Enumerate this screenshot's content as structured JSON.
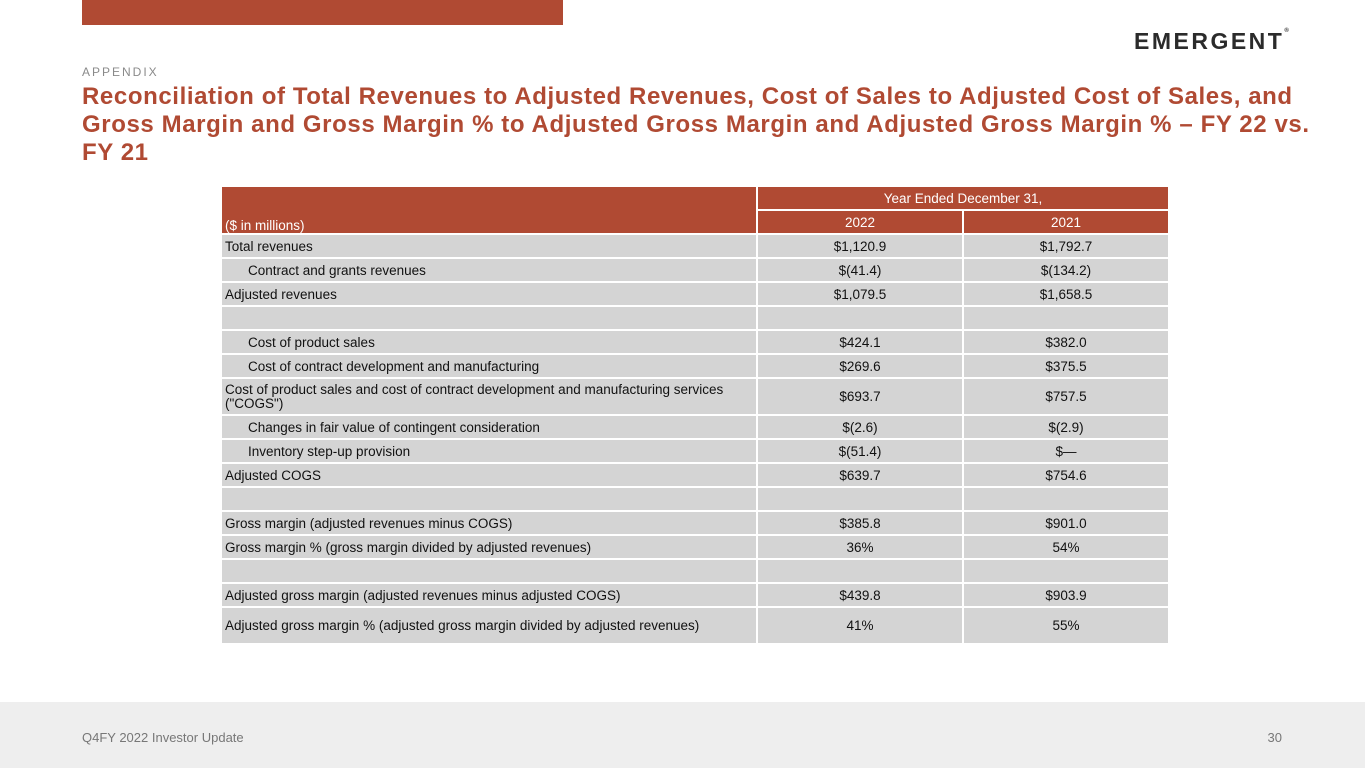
{
  "logo": "EMERGENT",
  "section": "APPENDIX",
  "title": "Reconciliation of Total Revenues to Adjusted Revenues, Cost of Sales to Adjusted Cost of Sales, and Gross Margin and Gross Margin % to Adjusted Gross Margin and Adjusted Gross Margin % – FY 22 vs. FY 21",
  "table": {
    "units": "($ in millions)",
    "period": "Year Ended December 31,",
    "years": [
      "2022",
      "2021"
    ],
    "rows": [
      {
        "label": "Total revenues",
        "v": [
          "$1,120.9",
          "$1,792.7"
        ]
      },
      {
        "label": "Contract and grants revenues",
        "v": [
          "$(41.4)",
          "$(134.2)"
        ]
      },
      {
        "label": "Adjusted revenues",
        "v": [
          "$1,079.5",
          "$1,658.5"
        ]
      },
      {
        "label": "",
        "v": [
          "",
          ""
        ]
      },
      {
        "label": "Cost of product sales",
        "v": [
          "$424.1",
          "$382.0"
        ]
      },
      {
        "label": "Cost of contract development and manufacturing",
        "v": [
          "$269.6",
          "$375.5"
        ]
      },
      {
        "label": "Cost of product sales and cost of contract development and manufacturing services (\"COGS\")",
        "v": [
          "$693.7",
          "$757.5"
        ]
      },
      {
        "label": "Changes in fair value of contingent consideration",
        "v": [
          "$(2.6)",
          "$(2.9)"
        ]
      },
      {
        "label": "Inventory step-up provision",
        "v": [
          "$(51.4)",
          "$—"
        ]
      },
      {
        "label": "Adjusted COGS",
        "v": [
          "$639.7",
          "$754.6"
        ]
      },
      {
        "label": "",
        "v": [
          "",
          ""
        ]
      },
      {
        "label": "Gross margin (adjusted revenues minus COGS)",
        "v": [
          "$385.8",
          "$901.0"
        ]
      },
      {
        "label": "Gross margin % (gross margin divided by adjusted revenues)",
        "v": [
          "36%",
          "54%"
        ]
      },
      {
        "label": "",
        "v": [
          "",
          ""
        ]
      },
      {
        "label": "Adjusted gross margin (adjusted revenues minus adjusted COGS)",
        "v": [
          "$439.8",
          "$903.9"
        ]
      },
      {
        "label": "Adjusted gross margin % (adjusted gross margin divided by adjusted revenues)",
        "v": [
          "41%",
          "55%"
        ]
      }
    ]
  },
  "footer": {
    "left": "Q4FY 2022 Investor Update",
    "page": "30"
  }
}
